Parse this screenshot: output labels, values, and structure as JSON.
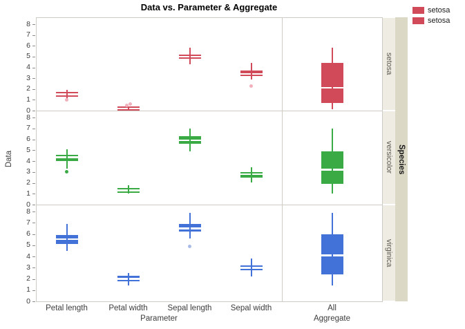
{
  "title": "Data vs. Parameter & Aggregate",
  "legend": {
    "entries": [
      {
        "label": "setosa",
        "color": "#d04a5a"
      },
      {
        "label": "setosa",
        "color": "#d04a5a"
      }
    ]
  },
  "axes": {
    "y_label": "Data",
    "y_ticks": [
      0,
      1,
      2,
      3,
      4,
      5,
      6,
      7,
      8
    ],
    "x_categories": [
      "Petal length",
      "Petal width",
      "Sepal length",
      "Sepal width",
      "All"
    ],
    "x_section_labels": [
      "Parameter",
      "Aggregate"
    ]
  },
  "facets": {
    "outer_strip_label": "Species",
    "row_labels": [
      "setosa",
      "versicolor",
      "virginica"
    ]
  },
  "chart_data": {
    "type": "box",
    "orientation": "vertical",
    "y_range": [
      0,
      8
    ],
    "grid": false,
    "legend_position": "top-right",
    "columns": [
      "Petal length",
      "Petal width",
      "Sepal length",
      "Sepal width",
      "All"
    ],
    "rows": [
      {
        "species": "setosa",
        "color": "#d04a5a",
        "outlier_color": "#f2afbc",
        "boxes": [
          {
            "category": "Petal length",
            "whisker_low": 1.1,
            "q1": 1.4,
            "median": 1.5,
            "q3": 1.6,
            "whisker_high": 1.9,
            "outliers": [
              1.0
            ]
          },
          {
            "category": "Petal width",
            "whisker_low": 0.1,
            "q1": 0.2,
            "median": 0.2,
            "q3": 0.3,
            "whisker_high": 0.4,
            "outliers": [
              0.5,
              0.6
            ]
          },
          {
            "category": "Sepal length",
            "whisker_low": 4.3,
            "q1": 4.8,
            "median": 5.0,
            "q3": 5.2,
            "whisker_high": 5.8,
            "outliers": []
          },
          {
            "category": "Sepal width",
            "whisker_low": 2.9,
            "q1": 3.2,
            "median": 3.4,
            "q3": 3.7,
            "whisker_high": 4.4,
            "outliers": [
              2.3
            ]
          },
          {
            "category": "All",
            "whisker_low": 0.1,
            "q1": 0.7,
            "median": 2.1,
            "q3": 4.4,
            "whisker_high": 5.8,
            "outliers": []
          }
        ]
      },
      {
        "species": "versicolor",
        "color": "#3aab44",
        "outlier_color": "#3aab44",
        "boxes": [
          {
            "category": "Petal length",
            "whisker_low": 3.3,
            "q1": 4.0,
            "median": 4.35,
            "q3": 4.6,
            "whisker_high": 5.1,
            "outliers": [
              3.0
            ]
          },
          {
            "category": "Petal width",
            "whisker_low": 1.0,
            "q1": 1.2,
            "median": 1.3,
            "q3": 1.5,
            "whisker_high": 1.8,
            "outliers": []
          },
          {
            "category": "Sepal length",
            "whisker_low": 4.9,
            "q1": 5.6,
            "median": 5.9,
            "q3": 6.3,
            "whisker_high": 7.0,
            "outliers": []
          },
          {
            "category": "Sepal width",
            "whisker_low": 2.0,
            "q1": 2.5,
            "median": 2.8,
            "q3": 3.0,
            "whisker_high": 3.4,
            "outliers": []
          },
          {
            "category": "All",
            "whisker_low": 1.0,
            "q1": 1.9,
            "median": 3.2,
            "q3": 4.9,
            "whisker_high": 7.0,
            "outliers": []
          }
        ]
      },
      {
        "species": "virginica",
        "color": "#4271d8",
        "outlier_color": "#a9bce8",
        "boxes": [
          {
            "category": "Petal length",
            "whisker_low": 4.5,
            "q1": 5.1,
            "median": 5.55,
            "q3": 5.9,
            "whisker_high": 6.9,
            "outliers": []
          },
          {
            "category": "Petal width",
            "whisker_low": 1.4,
            "q1": 1.8,
            "median": 2.0,
            "q3": 2.3,
            "whisker_high": 2.5,
            "outliers": []
          },
          {
            "category": "Sepal length",
            "whisker_low": 5.6,
            "q1": 6.2,
            "median": 6.5,
            "q3": 6.9,
            "whisker_high": 7.9,
            "outliers": [
              4.9
            ]
          },
          {
            "category": "Sepal width",
            "whisker_low": 2.2,
            "q1": 2.8,
            "median": 3.0,
            "q3": 3.2,
            "whisker_high": 3.8,
            "outliers": []
          },
          {
            "category": "All",
            "whisker_low": 1.4,
            "q1": 2.4,
            "median": 4.1,
            "q3": 6.0,
            "whisker_high": 7.9,
            "outliers": []
          }
        ]
      }
    ]
  }
}
